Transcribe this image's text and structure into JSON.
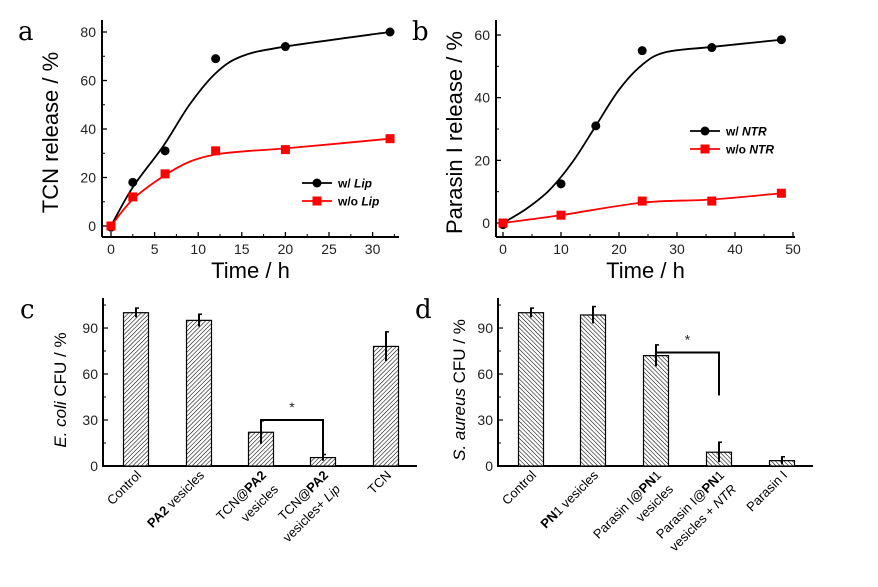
{
  "chart_data": [
    {
      "panel": "a",
      "type": "line",
      "title": "",
      "xlabel": "Time / h",
      "ylabel": "TCN release / %",
      "xlim": [
        -1,
        33
      ],
      "ylim": [
        -4,
        86
      ],
      "xticks": [
        0,
        5,
        10,
        15,
        20,
        25,
        30
      ],
      "yticks": [
        0,
        20,
        40,
        60,
        80
      ],
      "legend_position": "center-right",
      "series": [
        {
          "name": "w/ Lip",
          "legend_prefix": "w/ ",
          "legend_italic": "Lip",
          "color": "#000000",
          "marker": "circle",
          "x": [
            0,
            2.5,
            6.2,
            12,
            20,
            32
          ],
          "y": [
            -0.5,
            18,
            31,
            69,
            74,
            80
          ],
          "fit_x": [
            0,
            2.5,
            6,
            9,
            12,
            15,
            20,
            32
          ],
          "fit_y": [
            0,
            16,
            33,
            50,
            63,
            70,
            74,
            80
          ]
        },
        {
          "name": "w/o Lip",
          "legend_prefix": "w/o ",
          "legend_italic": "Lip",
          "color": "#ff0000",
          "marker": "square",
          "x": [
            0,
            2.5,
            6.2,
            12,
            20,
            32
          ],
          "y": [
            0,
            12,
            21.5,
            31,
            31.5,
            36
          ],
          "fit_x": [
            0,
            2.5,
            6,
            9,
            12,
            16,
            20,
            32
          ],
          "fit_y": [
            0,
            11,
            20.5,
            26.5,
            29.5,
            31,
            32,
            36
          ]
        }
      ]
    },
    {
      "panel": "b",
      "type": "line",
      "title": "",
      "xlabel": "Time / h",
      "ylabel": "Parasin I release / %",
      "xlim": [
        -1,
        50
      ],
      "ylim": [
        -5,
        65
      ],
      "xticks": [
        0,
        10,
        20,
        30,
        40,
        50
      ],
      "yticks": [
        0,
        20,
        40,
        60
      ],
      "legend_position": "center-right",
      "series": [
        {
          "name": "w/ NTR",
          "legend_prefix": "w/  ",
          "legend_italic": "NTR",
          "color": "#000000",
          "marker": "circle",
          "x": [
            0,
            10,
            16,
            24,
            36,
            48
          ],
          "y": [
            -0.5,
            12.5,
            31,
            55,
            56,
            58.5
          ],
          "fit_x": [
            0,
            4,
            8,
            12,
            16,
            20,
            24,
            28,
            36,
            48
          ],
          "fit_y": [
            0,
            4.5,
            10.5,
            19.5,
            31,
            42.5,
            50.5,
            54.5,
            56.2,
            58.5
          ]
        },
        {
          "name": "w/o NTR",
          "legend_prefix": "w/o ",
          "legend_italic": "NTR",
          "color": "#ff0000",
          "marker": "square",
          "x": [
            0,
            10,
            24,
            36,
            48
          ],
          "y": [
            0,
            2.5,
            7,
            7,
            9.5
          ],
          "fit_x": [
            0,
            10,
            24,
            36,
            48
          ],
          "fit_y": [
            0,
            2.5,
            6.5,
            7.5,
            9.5
          ]
        }
      ]
    },
    {
      "panel": "c",
      "type": "bar",
      "title": "",
      "xlabel": "",
      "ylabel_italic": "E. coli",
      "ylabel_rest": " CFU / %",
      "ylim": [
        0,
        108
      ],
      "yticks": [
        0,
        30,
        60,
        90
      ],
      "categories": [
        {
          "line1": [
            {
              "t": "Control",
              "b": false
            }
          ],
          "line2": []
        },
        {
          "line1": [
            {
              "t": "PA2",
              "b": true
            },
            {
              "t": " vesicles",
              "b": false
            }
          ],
          "line2": []
        },
        {
          "line1": [
            {
              "t": "TCN@",
              "b": false
            },
            {
              "t": "PA2",
              "b": true
            }
          ],
          "line2": [
            {
              "t": "vesicles",
              "b": false
            }
          ]
        },
        {
          "line1": [
            {
              "t": "TCN@",
              "b": false
            },
            {
              "t": "PA2",
              "b": true
            }
          ],
          "line2": [
            {
              "t": "vesicles+ ",
              "b": false
            },
            {
              "t": "Lip",
              "b": false,
              "i": true
            }
          ]
        },
        {
          "line1": [
            {
              "t": "TCN",
              "b": false
            }
          ],
          "line2": []
        }
      ],
      "values": [
        100,
        95,
        22,
        5.5,
        78
      ],
      "errors": [
        3,
        4,
        7.5,
        2,
        9.5
      ],
      "significance": {
        "from": 2,
        "to": 3,
        "label": "*",
        "y": 30,
        "left_drop_to": 26,
        "right_drop_to": 6
      }
    },
    {
      "panel": "d",
      "type": "bar",
      "title": "",
      "xlabel": "",
      "ylabel_italic": "S. aureus",
      "ylabel_rest": " CFU / %",
      "ylim": [
        0,
        108
      ],
      "yticks": [
        0,
        30,
        60,
        90
      ],
      "categories": [
        {
          "line1": [
            {
              "t": "Control",
              "b": false
            }
          ],
          "line2": []
        },
        {
          "line1": [
            {
              "t": "PN",
              "b": true
            },
            {
              "t": "1 vesicles",
              "b": false
            }
          ],
          "line2": []
        },
        {
          "line1": [
            {
              "t": "Parasin I@",
              "b": false
            },
            {
              "t": "PN",
              "b": true
            },
            {
              "t": "1",
              "b": false
            }
          ],
          "line2": [
            {
              "t": "vesicles",
              "b": false
            }
          ]
        },
        {
          "line1": [
            {
              "t": "Parasin I@",
              "b": false
            },
            {
              "t": "PN",
              "b": true
            },
            {
              "t": "1",
              "b": false
            }
          ],
          "line2": [
            {
              "t": "vesicles + ",
              "b": false
            },
            {
              "t": "NTR",
              "b": false,
              "i": true
            }
          ]
        },
        {
          "line1": [
            {
              "t": "Parasin I",
              "b": false
            }
          ],
          "line2": []
        }
      ],
      "values": [
        100,
        98.5,
        72,
        9,
        3.5
      ],
      "errors": [
        3,
        5.5,
        7,
        6.5,
        2.5
      ],
      "significance": {
        "from": 2,
        "to": 3,
        "label": "*",
        "y": 74,
        "left_drop_to": 70,
        "right_drop_to": 46
      }
    }
  ],
  "panel_letters": [
    "a",
    "b",
    "c",
    "d"
  ]
}
